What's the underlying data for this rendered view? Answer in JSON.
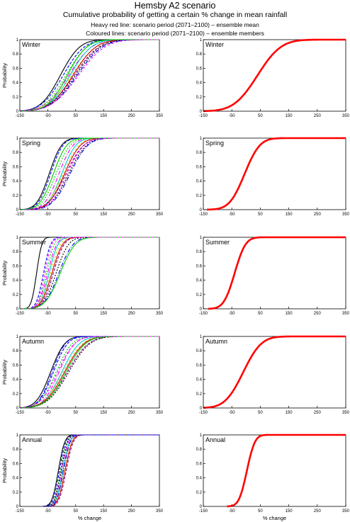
{
  "header": {
    "title": "Hemsby A2 scenario",
    "subtitle": "Cumulative probability of getting a certain % change in mean rainfall",
    "note_mean": "Heavy red line: scenario period (2071–2100) – ensemble mean",
    "note_members": "Coloured lines: scenario period (2071–2100) – ensemble members"
  },
  "axes": {
    "xlabel": "% change",
    "ylabel": "Probability",
    "xlim": [
      -150,
      350
    ],
    "ylim": [
      0,
      1
    ],
    "xticks": [
      -150,
      -50,
      50,
      150,
      250,
      350
    ],
    "yticks": [
      0,
      0.2,
      0.4,
      0.6,
      0.8,
      1
    ],
    "ytick_labels": [
      "0",
      "0.2",
      "0.4",
      "0.6",
      "0.8",
      "1"
    ]
  },
  "colors": {
    "mean": "#ff0000",
    "members": [
      "#000000",
      "#0000ff",
      "#00cc00",
      "#ff00ff",
      "#00cccc",
      "#cccc00",
      "#cc0000",
      "#800080"
    ]
  },
  "chart_data": [
    {
      "type": "line",
      "season": "Winter",
      "panel": "members",
      "series": [
        {
          "mu": -5,
          "sigma": 55
        },
        {
          "mu": 5,
          "sigma": 60
        },
        {
          "mu": 15,
          "sigma": 60
        },
        {
          "mu": 25,
          "sigma": 65
        },
        {
          "mu": 30,
          "sigma": 60
        },
        {
          "mu": 35,
          "sigma": 70
        },
        {
          "mu": 40,
          "sigma": 65
        },
        {
          "mu": 45,
          "sigma": 70
        },
        {
          "mu": 50,
          "sigma": 70
        },
        {
          "mu": 55,
          "sigma": 72
        },
        {
          "mu": 20,
          "sigma": 55
        },
        {
          "mu": 60,
          "sigma": 75
        }
      ]
    },
    {
      "type": "line",
      "season": "Winter",
      "panel": "mean",
      "series": [
        {
          "mu": 40,
          "sigma": 65
        }
      ]
    },
    {
      "type": "line",
      "season": "Spring",
      "panel": "members",
      "series": [
        {
          "mu": -45,
          "sigma": 35
        },
        {
          "mu": -40,
          "sigma": 35
        },
        {
          "mu": -20,
          "sigma": 40
        },
        {
          "mu": -10,
          "sigma": 40
        },
        {
          "mu": 0,
          "sigma": 40
        },
        {
          "mu": 5,
          "sigma": 45
        },
        {
          "mu": 10,
          "sigma": 45
        },
        {
          "mu": 15,
          "sigma": 50
        },
        {
          "mu": 25,
          "sigma": 50
        },
        {
          "mu": 30,
          "sigma": 50
        },
        {
          "mu": -30,
          "sigma": 38
        },
        {
          "mu": 20,
          "sigma": 48
        }
      ]
    },
    {
      "type": "line",
      "season": "Spring",
      "panel": "mean",
      "series": [
        {
          "mu": -5,
          "sigma": 42
        }
      ]
    },
    {
      "type": "line",
      "season": "Summer",
      "panel": "members",
      "series": [
        {
          "mu": -90,
          "sigma": 15
        },
        {
          "mu": -65,
          "sigma": 20
        },
        {
          "mu": -55,
          "sigma": 22
        },
        {
          "mu": -50,
          "sigma": 25
        },
        {
          "mu": -45,
          "sigma": 25
        },
        {
          "mu": -40,
          "sigma": 28
        },
        {
          "mu": -35,
          "sigma": 30
        },
        {
          "mu": -30,
          "sigma": 30
        },
        {
          "mu": -20,
          "sigma": 35
        },
        {
          "mu": -10,
          "sigma": 40
        },
        {
          "mu": -5,
          "sigma": 42
        },
        {
          "mu": -60,
          "sigma": 20
        }
      ]
    },
    {
      "type": "line",
      "season": "Summer",
      "panel": "mean",
      "series": [
        {
          "mu": -40,
          "sigma": 30
        }
      ]
    },
    {
      "type": "line",
      "season": "Autumn",
      "panel": "members",
      "series": [
        {
          "mu": -40,
          "sigma": 40
        },
        {
          "mu": -30,
          "sigma": 40
        },
        {
          "mu": -20,
          "sigma": 45
        },
        {
          "mu": -10,
          "sigma": 45
        },
        {
          "mu": 0,
          "sigma": 50
        },
        {
          "mu": 5,
          "sigma": 55
        },
        {
          "mu": 10,
          "sigma": 55
        },
        {
          "mu": 20,
          "sigma": 60
        },
        {
          "mu": 25,
          "sigma": 60
        },
        {
          "mu": -35,
          "sigma": 38
        },
        {
          "mu": 15,
          "sigma": 55
        },
        {
          "mu": -15,
          "sigma": 48
        }
      ]
    },
    {
      "type": "line",
      "season": "Autumn",
      "panel": "mean",
      "series": [
        {
          "mu": -10,
          "sigma": 50
        }
      ]
    },
    {
      "type": "line",
      "season": "Annual",
      "panel": "members",
      "series": [
        {
          "mu": -12,
          "sigma": 18
        },
        {
          "mu": -8,
          "sigma": 18
        },
        {
          "mu": -4,
          "sigma": 18
        },
        {
          "mu": 0,
          "sigma": 19
        },
        {
          "mu": 4,
          "sigma": 19
        },
        {
          "mu": 8,
          "sigma": 20
        },
        {
          "mu": 12,
          "sigma": 20
        },
        {
          "mu": 16,
          "sigma": 20
        },
        {
          "mu": -2,
          "sigma": 18
        },
        {
          "mu": 6,
          "sigma": 19
        }
      ]
    },
    {
      "type": "line",
      "season": "Annual",
      "panel": "mean",
      "series": [
        {
          "mu": 3,
          "sigma": 22
        }
      ]
    }
  ]
}
